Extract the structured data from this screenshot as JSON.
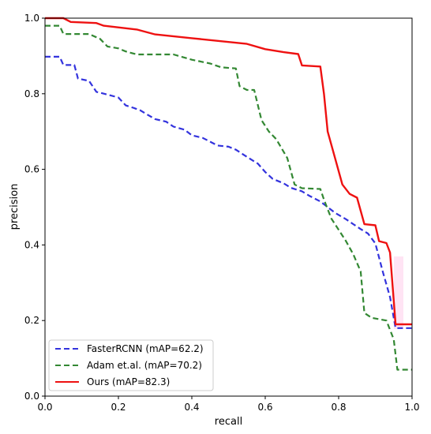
{
  "chart_data": {
    "type": "line",
    "title": "",
    "xlabel": "recall",
    "ylabel": "precision",
    "xlim": [
      0,
      1
    ],
    "ylim": [
      0,
      1
    ],
    "x_ticks": [
      "0.0",
      "0.2",
      "0.4",
      "0.6",
      "0.8",
      "1.0"
    ],
    "y_ticks": [
      "0.0",
      "0.2",
      "0.4",
      "0.6",
      "0.8",
      "1.0"
    ],
    "grid": false,
    "legend_position": "bottom-left",
    "series": [
      {
        "name": "FasterRCNN (mAP=62.2)",
        "color": "#3333dd",
        "style": "dashed",
        "points": [
          [
            0,
            0.898
          ],
          [
            0.04,
            0.898
          ],
          [
            0.05,
            0.876
          ],
          [
            0.08,
            0.876
          ],
          [
            0.09,
            0.84
          ],
          [
            0.12,
            0.834
          ],
          [
            0.14,
            0.805
          ],
          [
            0.17,
            0.798
          ],
          [
            0.2,
            0.79
          ],
          [
            0.22,
            0.769
          ],
          [
            0.24,
            0.763
          ],
          [
            0.26,
            0.756
          ],
          [
            0.28,
            0.744
          ],
          [
            0.3,
            0.733
          ],
          [
            0.33,
            0.726
          ],
          [
            0.35,
            0.713
          ],
          [
            0.38,
            0.705
          ],
          [
            0.4,
            0.69
          ],
          [
            0.43,
            0.683
          ],
          [
            0.45,
            0.673
          ],
          [
            0.47,
            0.663
          ],
          [
            0.5,
            0.66
          ],
          [
            0.52,
            0.652
          ],
          [
            0.55,
            0.633
          ],
          [
            0.58,
            0.615
          ],
          [
            0.6,
            0.593
          ],
          [
            0.62,
            0.575
          ],
          [
            0.65,
            0.563
          ],
          [
            0.67,
            0.551
          ],
          [
            0.7,
            0.542
          ],
          [
            0.72,
            0.53
          ],
          [
            0.75,
            0.515
          ],
          [
            0.77,
            0.5
          ],
          [
            0.79,
            0.485
          ],
          [
            0.82,
            0.468
          ],
          [
            0.84,
            0.455
          ],
          [
            0.86,
            0.442
          ],
          [
            0.88,
            0.43
          ],
          [
            0.9,
            0.404
          ],
          [
            0.92,
            0.33
          ],
          [
            0.94,
            0.262
          ],
          [
            0.955,
            0.18
          ],
          [
            1.0,
            0.18
          ]
        ]
      },
      {
        "name": "Adam et.al. (mAP=70.2)",
        "color": "#338833",
        "style": "dashed",
        "points": [
          [
            0,
            0.98
          ],
          [
            0.04,
            0.98
          ],
          [
            0.05,
            0.958
          ],
          [
            0.12,
            0.958
          ],
          [
            0.15,
            0.945
          ],
          [
            0.17,
            0.925
          ],
          [
            0.2,
            0.92
          ],
          [
            0.22,
            0.912
          ],
          [
            0.25,
            0.904
          ],
          [
            0.35,
            0.904
          ],
          [
            0.4,
            0.89
          ],
          [
            0.45,
            0.88
          ],
          [
            0.48,
            0.87
          ],
          [
            0.52,
            0.867
          ],
          [
            0.53,
            0.82
          ],
          [
            0.55,
            0.81
          ],
          [
            0.57,
            0.81
          ],
          [
            0.59,
            0.73
          ],
          [
            0.61,
            0.7
          ],
          [
            0.63,
            0.68
          ],
          [
            0.66,
            0.63
          ],
          [
            0.68,
            0.56
          ],
          [
            0.7,
            0.55
          ],
          [
            0.75,
            0.548
          ],
          [
            0.76,
            0.52
          ],
          [
            0.78,
            0.47
          ],
          [
            0.8,
            0.44
          ],
          [
            0.82,
            0.41
          ],
          [
            0.84,
            0.375
          ],
          [
            0.86,
            0.33
          ],
          [
            0.87,
            0.22
          ],
          [
            0.89,
            0.207
          ],
          [
            0.93,
            0.2
          ],
          [
            0.95,
            0.15
          ],
          [
            0.96,
            0.07
          ],
          [
            1.0,
            0.07
          ]
        ]
      },
      {
        "name": "Ours (mAP=82.3)",
        "color": "#ee1111",
        "style": "solid",
        "points": [
          [
            0,
            1.0
          ],
          [
            0.05,
            1.0
          ],
          [
            0.07,
            0.99
          ],
          [
            0.14,
            0.987
          ],
          [
            0.16,
            0.98
          ],
          [
            0.25,
            0.97
          ],
          [
            0.3,
            0.957
          ],
          [
            0.4,
            0.947
          ],
          [
            0.5,
            0.937
          ],
          [
            0.55,
            0.932
          ],
          [
            0.6,
            0.918
          ],
          [
            0.65,
            0.91
          ],
          [
            0.69,
            0.905
          ],
          [
            0.7,
            0.875
          ],
          [
            0.75,
            0.872
          ],
          [
            0.76,
            0.8
          ],
          [
            0.77,
            0.7
          ],
          [
            0.79,
            0.63
          ],
          [
            0.81,
            0.56
          ],
          [
            0.83,
            0.535
          ],
          [
            0.85,
            0.525
          ],
          [
            0.87,
            0.455
          ],
          [
            0.9,
            0.452
          ],
          [
            0.91,
            0.41
          ],
          [
            0.93,
            0.405
          ],
          [
            0.94,
            0.38
          ],
          [
            0.955,
            0.19
          ],
          [
            1.0,
            0.19
          ]
        ]
      }
    ]
  }
}
